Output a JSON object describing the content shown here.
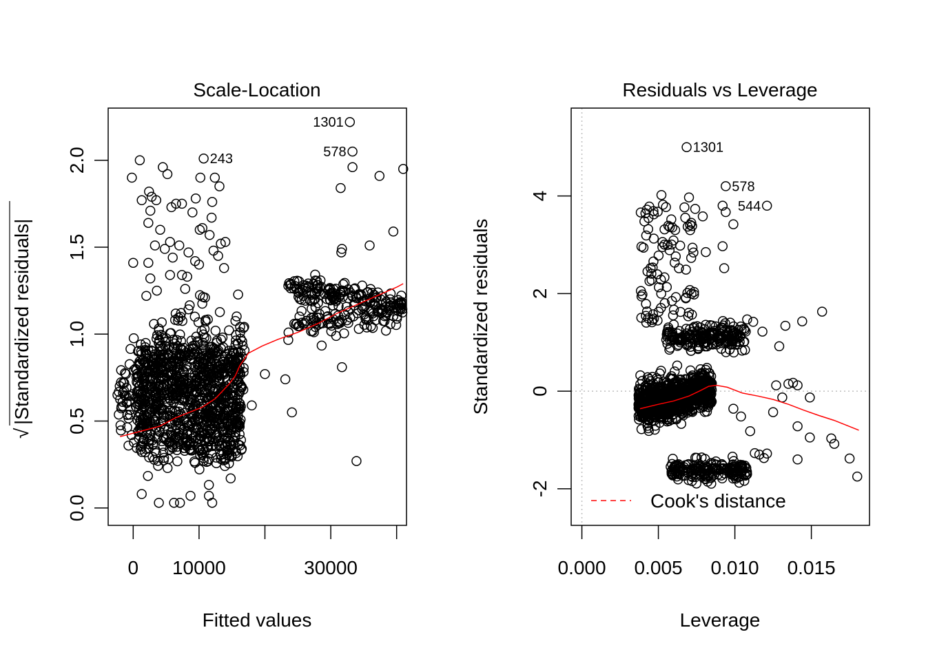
{
  "chart_data": [
    {
      "type": "scatter",
      "title": "Scale-Location",
      "xlabel": "Fitted values",
      "ylabel": "√|Standardized residuals|",
      "ylabel_sqrt_symbol": "√",
      "ylabel_text": "|Standardized residuals|",
      "xlim": [
        -3800,
        41500
      ],
      "ylim": [
        -0.1,
        2.3
      ],
      "xticks": [
        0,
        10000,
        20000,
        30000,
        40000
      ],
      "xtick_labels": [
        "0",
        "10000",
        "",
        "30000",
        ""
      ],
      "yticks": [
        0.0,
        0.5,
        1.0,
        1.5,
        2.0
      ],
      "ytick_labels": [
        "0.0",
        "0.5",
        "1.0",
        "1.5",
        "2.0"
      ],
      "grid": false,
      "point_colour": "#000000",
      "smooth_colour": "#ff0000",
      "annotations": [
        {
          "label": "1301",
          "x": 32900,
          "y": 2.22,
          "side": "left"
        },
        {
          "label": "578",
          "x": 33300,
          "y": 2.05,
          "side": "left"
        },
        {
          "label": "243",
          "x": 10700,
          "y": 2.01,
          "side": "right"
        }
      ],
      "clusters": [
        {
          "name": "main-low",
          "x_range": [
            700,
            16500
          ],
          "y_center": 0.52,
          "y_spread": 0.2,
          "count": 900
        },
        {
          "name": "main-mid",
          "x_range": [
            3000,
            17000
          ],
          "y_center": 0.85,
          "y_spread": 0.15,
          "count": 220
        },
        {
          "name": "left-arm",
          "x_range": [
            -2500,
            2000
          ],
          "y_center": 0.6,
          "y_spread": 0.12,
          "count": 80
        },
        {
          "name": "high-group",
          "x_range": [
            23500,
            41000
          ],
          "y_center": 1.15,
          "y_spread": 0.09,
          "count": 260
        }
      ],
      "outliers": [
        [
          32900,
          2.22
        ],
        [
          33300,
          2.05
        ],
        [
          10700,
          2.01
        ],
        [
          1000,
          2.0
        ],
        [
          -200,
          1.9
        ],
        [
          4500,
          1.96
        ],
        [
          5200,
          1.92
        ],
        [
          2400,
          1.82
        ],
        [
          2800,
          1.79
        ],
        [
          3500,
          1.77
        ],
        [
          1300,
          1.77
        ],
        [
          2600,
          1.71
        ],
        [
          5800,
          1.73
        ],
        [
          6500,
          1.75
        ],
        [
          7400,
          1.75
        ],
        [
          10200,
          1.9
        ],
        [
          12400,
          1.9
        ],
        [
          13100,
          1.85
        ],
        [
          12000,
          1.76
        ],
        [
          9500,
          1.78
        ],
        [
          9000,
          1.7
        ],
        [
          11900,
          1.67
        ],
        [
          10500,
          1.61
        ],
        [
          10100,
          1.6
        ],
        [
          11600,
          1.57
        ],
        [
          13300,
          1.52
        ],
        [
          14000,
          1.53
        ],
        [
          2300,
          1.64
        ],
        [
          4100,
          1.6
        ],
        [
          3300,
          1.51
        ],
        [
          4800,
          1.49
        ],
        [
          5600,
          1.53
        ],
        [
          7000,
          1.51
        ],
        [
          6000,
          1.44
        ],
        [
          8400,
          1.47
        ],
        [
          9400,
          1.42
        ],
        [
          10000,
          1.4
        ],
        [
          12200,
          1.48
        ],
        [
          12900,
          1.45
        ],
        [
          13800,
          1.38
        ],
        [
          0,
          1.41
        ],
        [
          2300,
          1.41
        ],
        [
          5600,
          1.34
        ],
        [
          7400,
          1.34
        ],
        [
          2600,
          1.32
        ],
        [
          8200,
          1.33
        ],
        [
          2000,
          1.22
        ],
        [
          3600,
          1.25
        ],
        [
          7900,
          1.26
        ],
        [
          10900,
          1.21
        ],
        [
          2100,
          0.88
        ],
        [
          37400,
          1.91
        ],
        [
          41000,
          1.95
        ],
        [
          33300,
          1.96
        ],
        [
          31500,
          1.84
        ],
        [
          39500,
          1.59
        ],
        [
          35900,
          1.51
        ],
        [
          31700,
          1.49
        ],
        [
          31600,
          1.47
        ],
        [
          23100,
          0.74
        ],
        [
          24100,
          0.55
        ],
        [
          31700,
          0.81
        ],
        [
          33900,
          0.27
        ],
        [
          20000,
          0.77
        ],
        [
          18000,
          0.59
        ],
        [
          16200,
          0.6
        ],
        [
          8700,
          0.07
        ],
        [
          7100,
          0.03
        ],
        [
          6200,
          0.03
        ],
        [
          3900,
          0.03
        ],
        [
          12000,
          0.03
        ],
        [
          14800,
          0.17
        ],
        [
          14600,
          0.3
        ],
        [
          11500,
          0.07
        ],
        [
          1300,
          0.08
        ]
      ],
      "smooth_line": {
        "x": [
          -2000,
          1000,
          4000,
          6500,
          8500,
          10500,
          12500,
          14500,
          15500,
          16200,
          17500,
          19500,
          22000,
          25000,
          28000,
          31000,
          34000,
          37000,
          40000,
          41000
        ],
        "y": [
          0.41,
          0.44,
          0.47,
          0.52,
          0.55,
          0.58,
          0.63,
          0.71,
          0.76,
          0.82,
          0.89,
          0.93,
          0.97,
          1.01,
          1.06,
          1.12,
          1.17,
          1.22,
          1.27,
          1.29
        ]
      }
    },
    {
      "type": "scatter",
      "title": "Residuals vs Leverage",
      "xlabel": "Leverage",
      "ylabel": "Standardized residuals",
      "xlim": [
        -0.0007,
        0.0188
      ],
      "ylim": [
        -2.75,
        5.8
      ],
      "xticks": [
        0.0,
        0.005,
        0.01,
        0.015
      ],
      "xtick_labels": [
        "0.000",
        "0.005",
        "0.010",
        "0.015"
      ],
      "yticks": [
        -2,
        0,
        2,
        4
      ],
      "ytick_labels": [
        "-2",
        "0",
        "2",
        "4"
      ],
      "grid": false,
      "reference_lines": {
        "h": 0,
        "v": 0,
        "colour": "#bebebe",
        "style": "dotted"
      },
      "point_colour": "#000000",
      "smooth_colour": "#ff0000",
      "legend": {
        "position": "bottom-left",
        "entries": [
          {
            "label": "Cook's distance",
            "colour": "#ff0000",
            "style": "dashed"
          }
        ]
      },
      "annotations": [
        {
          "label": "1301",
          "x": 0.00685,
          "y": 5.0,
          "side": "right"
        },
        {
          "label": "578",
          "x": 0.0094,
          "y": 4.2,
          "side": "right"
        },
        {
          "label": "544",
          "x": 0.0121,
          "y": 3.8,
          "side": "left"
        }
      ],
      "clusters": [
        {
          "name": "center",
          "x_range": [
            0.0037,
            0.0085
          ],
          "y_center": -0.3,
          "y_spread": 0.3,
          "count": 900
        },
        {
          "name": "band-1",
          "x_range": [
            0.0055,
            0.0108
          ],
          "y_center": 1.1,
          "y_spread": 0.13,
          "count": 200
        },
        {
          "name": "band-neg",
          "x_range": [
            0.0058,
            0.0108
          ],
          "y_center": -1.62,
          "y_spread": 0.1,
          "count": 180
        },
        {
          "name": "upper",
          "x_range": [
            0.0038,
            0.0075
          ],
          "y_center": 2.6,
          "y_spread": 0.6,
          "count": 90
        }
      ],
      "outliers": [
        [
          0.00685,
          5.0
        ],
        [
          0.0094,
          4.2
        ],
        [
          0.0121,
          3.8
        ],
        [
          0.0092,
          3.8
        ],
        [
          0.0094,
          3.67
        ],
        [
          0.0099,
          3.42
        ],
        [
          0.007,
          3.97
        ],
        [
          0.0052,
          4.02
        ],
        [
          0.0053,
          3.82
        ],
        [
          0.0079,
          3.58
        ],
        [
          0.0092,
          2.97
        ],
        [
          0.0093,
          2.52
        ],
        [
          0.0081,
          2.85
        ],
        [
          0.0144,
          1.43
        ],
        [
          0.0157,
          1.63
        ],
        [
          0.0133,
          1.34
        ],
        [
          0.0129,
          0.92
        ],
        [
          0.0118,
          1.22
        ],
        [
          0.0112,
          1.42
        ],
        [
          0.0108,
          1.47
        ],
        [
          0.0127,
          0.12
        ],
        [
          0.0135,
          0.15
        ],
        [
          0.0141,
          0.12
        ],
        [
          0.0138,
          0.17
        ],
        [
          0.0131,
          -0.13
        ],
        [
          0.0125,
          -0.43
        ],
        [
          0.0141,
          -0.72
        ],
        [
          0.0149,
          -0.13
        ],
        [
          0.0163,
          -0.97
        ],
        [
          0.0149,
          -0.95
        ],
        [
          0.0165,
          -1.08
        ],
        [
          0.0175,
          -1.38
        ],
        [
          0.018,
          -1.75
        ],
        [
          0.0141,
          -1.4
        ],
        [
          0.0121,
          -1.28
        ],
        [
          0.0116,
          -1.3
        ],
        [
          0.011,
          -0.82
        ],
        [
          0.0104,
          -0.52
        ],
        [
          0.0099,
          -0.36
        ],
        [
          0.0113,
          -1.27
        ],
        [
          0.0119,
          -1.37
        ]
      ],
      "smooth_line": {
        "x": [
          0.0038,
          0.005,
          0.006,
          0.007,
          0.0078,
          0.0083,
          0.0088,
          0.0095,
          0.0105,
          0.0115,
          0.0125,
          0.0135,
          0.0145,
          0.0155,
          0.0165,
          0.0181
        ],
        "y": [
          -0.36,
          -0.27,
          -0.2,
          -0.1,
          0.02,
          0.1,
          0.12,
          0.08,
          -0.04,
          -0.1,
          -0.17,
          -0.27,
          -0.39,
          -0.5,
          -0.6,
          -0.8
        ]
      }
    }
  ]
}
